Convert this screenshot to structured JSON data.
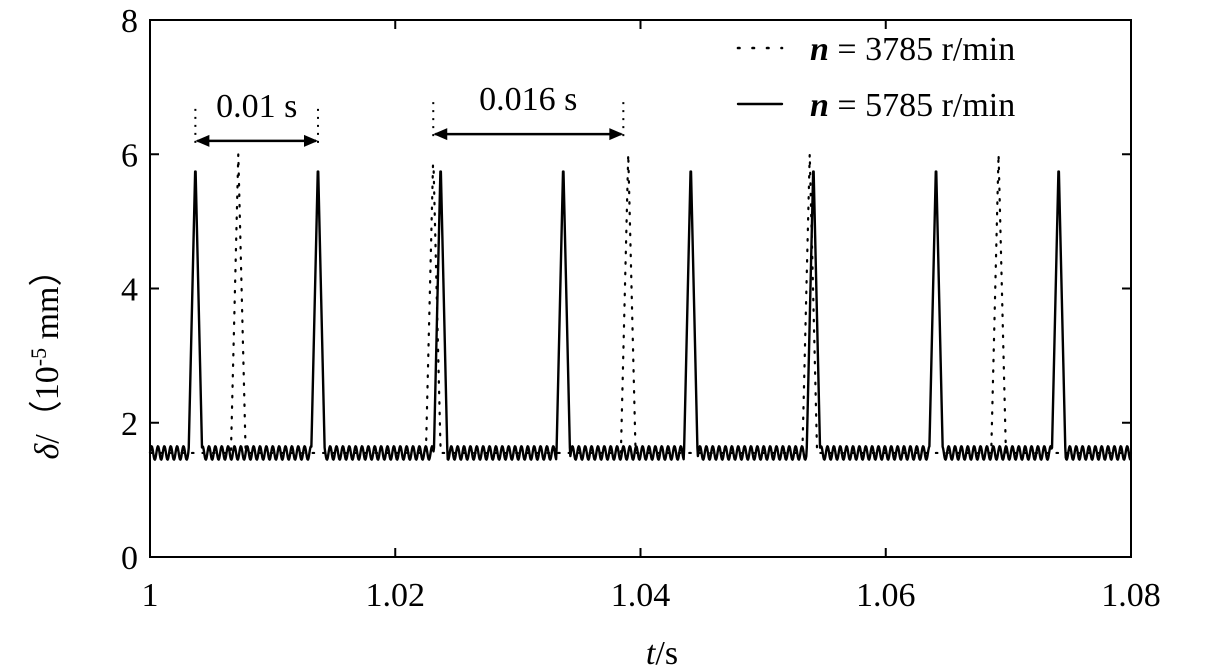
{
  "chart_data": {
    "type": "line",
    "xlabel": {
      "var": "t",
      "unit": "/s"
    },
    "ylabel": {
      "var": "δ",
      "sep": "/",
      "open": "（",
      "num": "10",
      "exp": "-5",
      "unit": " mm",
      "close": "）"
    },
    "xlim": [
      1.0,
      1.08
    ],
    "ylim": [
      0,
      8
    ],
    "xticks": [
      1.0,
      1.02,
      1.04,
      1.06,
      1.08
    ],
    "xtick_labels": [
      "1",
      "1.02",
      "1.04",
      "1.06",
      "1.08"
    ],
    "yticks": [
      0,
      2,
      4,
      6,
      8
    ],
    "ytick_labels": [
      "0",
      "2",
      "4",
      "6",
      "8"
    ],
    "grid": false,
    "legend_position": "top-right",
    "series": [
      {
        "name": "n = 3785 r/min",
        "name_var": "n",
        "name_rest": " = 3785 r/min",
        "style": "dotted",
        "baseline": 1.55,
        "peak": 6.0,
        "peak_half_width": 0.0006,
        "peak_times": [
          1.0072,
          1.0231,
          1.039,
          1.0538,
          1.0692
        ],
        "x": [
          1.0,
          1.0066,
          1.0072,
          1.0078,
          1.0225,
          1.0231,
          1.0237,
          1.0384,
          1.039,
          1.0396,
          1.0532,
          1.0538,
          1.0544,
          1.0686,
          1.0692,
          1.0698,
          1.08
        ],
        "y": [
          1.55,
          1.55,
          6.0,
          1.55,
          1.55,
          6.0,
          1.55,
          1.55,
          6.0,
          1.55,
          1.55,
          6.0,
          1.55,
          1.55,
          6.0,
          1.55,
          1.55
        ]
      },
      {
        "name": "n = 5785 r/min",
        "name_var": "n",
        "name_rest": " = 5785 r/min",
        "style": "solid",
        "baseline": 1.55,
        "ripple_amplitude": 0.1,
        "ripple_period": 0.00052,
        "peak": 5.9,
        "peak_half_width": 0.00055,
        "peak_times": [
          1.0037,
          1.0137,
          1.0237,
          1.0337,
          1.0441,
          1.0541,
          1.0641,
          1.0741
        ],
        "x": [
          1.0,
          1.00315,
          1.0037,
          1.00425,
          1.01315,
          1.0137,
          1.01425,
          1.02315,
          1.0237,
          1.02425,
          1.03315,
          1.0337,
          1.03425,
          1.04355,
          1.0441,
          1.04465,
          1.05355,
          1.0541,
          1.05465,
          1.06355,
          1.0641,
          1.06465,
          1.07355,
          1.0741,
          1.07465,
          1.08
        ],
        "y": [
          1.55,
          1.55,
          5.9,
          1.55,
          1.55,
          5.9,
          1.55,
          1.55,
          5.9,
          1.55,
          1.55,
          5.9,
          1.55,
          1.55,
          5.9,
          1.55,
          1.55,
          5.9,
          1.55,
          1.55,
          5.9,
          1.55,
          1.55,
          5.9,
          1.55,
          1.55
        ]
      }
    ],
    "annotations": [
      {
        "text": "0.01 s",
        "from": 1.0037,
        "to": 1.0137,
        "level": 6.2
      },
      {
        "text": "0.016 s",
        "from": 1.0231,
        "to": 1.0386,
        "level": 6.3
      }
    ]
  }
}
